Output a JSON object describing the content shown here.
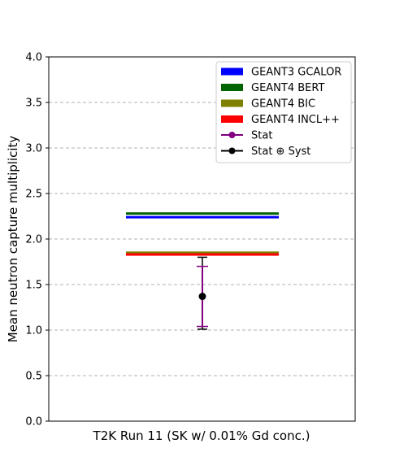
{
  "chart_data": {
    "type": "scatter",
    "title": "",
    "xlabel": "T2K Run 11 (SK w/ 0.01% Gd conc.)",
    "ylabel": "Mean neutron capture multiplicity",
    "ylim": [
      0.0,
      4.0
    ],
    "yticks": [
      "0.0",
      "0.5",
      "1.0",
      "1.5",
      "2.0",
      "2.5",
      "3.0",
      "3.5",
      "4.0"
    ],
    "grid": "horizontal dashed",
    "legend_position": "top-right",
    "predictions": [
      {
        "name": "GEANT3 GCALOR",
        "value": 2.24,
        "color": "#0000ff"
      },
      {
        "name": "GEANT4 BERT",
        "value": 2.28,
        "color": "#006400"
      },
      {
        "name": "GEANT4 BIC",
        "value": 1.85,
        "color": "#808000"
      },
      {
        "name": "GEANT4 INCL++",
        "value": 1.83,
        "color": "#ff0000"
      }
    ],
    "measurement": {
      "value": 1.37,
      "stat": {
        "name": "Stat",
        "low": 1.04,
        "high": 1.7,
        "color": "#800080"
      },
      "syst": {
        "name": "Stat ⊕ Syst",
        "low": 1.01,
        "high": 1.8,
        "color": "#000000"
      }
    }
  }
}
